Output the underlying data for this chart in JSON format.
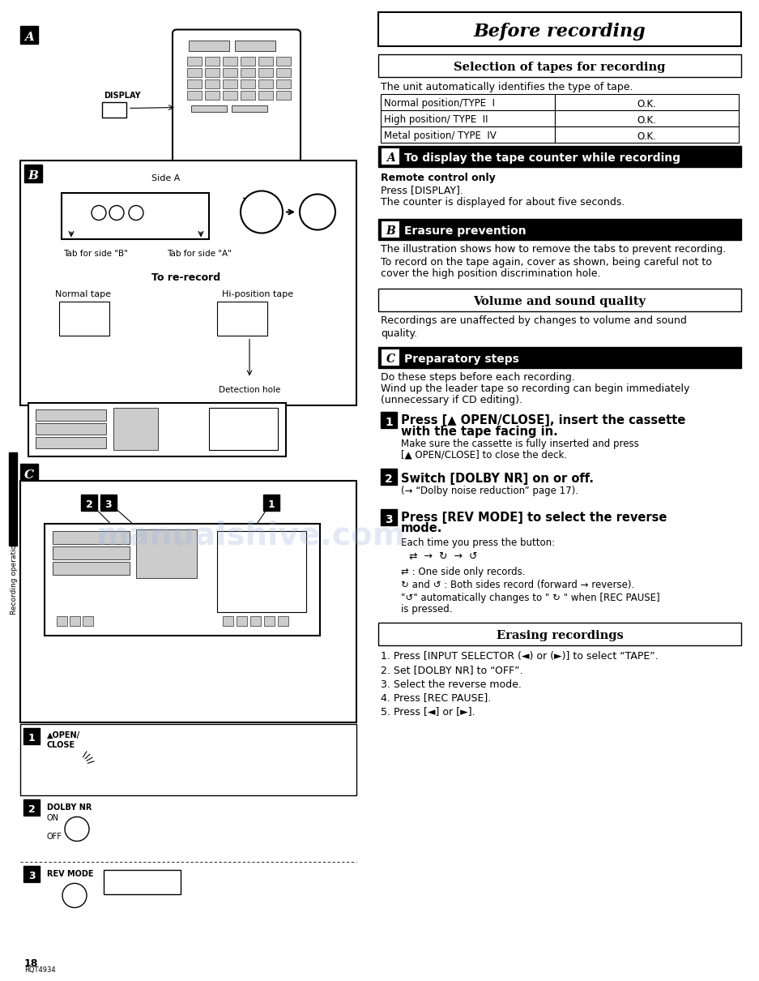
{
  "page_bg": "#ffffff",
  "title": "Before recording",
  "section1_header": "Selection of tapes for recording",
  "section1_intro": "The unit automatically identifies the type of tape.",
  "table_rows": [
    [
      "Normal position/TYPE  I",
      "O.K."
    ],
    [
      "High position/ TYPE  II",
      "O.K."
    ],
    [
      "Metal position/ TYPE  IV",
      "O.K."
    ]
  ],
  "sectionA_header": "To display the tape counter while recording",
  "sectionA_bold": "Remote control only",
  "sectionA_text1": "Press [DISPLAY].",
  "sectionA_text2": "The counter is displayed for about five seconds.",
  "sectionB_header": "Erasure prevention",
  "sectionB_lines": [
    "The illustration shows how to remove the tabs to prevent recording.",
    "To record on the tape again, cover as shown, being careful not to",
    "cover the high position discrimination hole."
  ],
  "section2_header": "Volume and sound quality",
  "section2_lines": [
    "Recordings are unaffected by changes to volume and sound",
    "quality."
  ],
  "sectionC_header": "Preparatory steps",
  "sectionC_intro1": "Do these steps before each recording.",
  "sectionC_intro2": "Wind up the leader tape so recording can begin immediately",
  "sectionC_intro3": "(unnecessary if CD editing).",
  "step1_bold1": "Press [▲ OPEN/CLOSE], insert the cassette",
  "step1_bold2": "with the tape facing in.",
  "step1_sub1": "Make sure the cassette is fully inserted and press",
  "step1_sub2": "[▲ OPEN/CLOSE] to close the deck.",
  "step2_bold": "Switch [DOLBY NR] on or off.",
  "step2_sub": "(→ “Dolby noise reduction” page 17).",
  "step3_bold1": "Press [REV MODE] to select the reverse",
  "step3_bold2": "mode.",
  "step3_sub1": "Each time you press the button:",
  "step3_arrows": "⇄  →  ↻  →  ↺",
  "step3_note1": "⇄ : One side only records.",
  "step3_note2": "↻ and ↺ : Both sides record (forward → reverse).",
  "step3_note3a": "\"↺\" automatically changes to \" ↻ \" when [REC PAUSE]",
  "step3_note3b": "is pressed.",
  "erasing_header": "Erasing recordings",
  "erasing_steps": [
    "1. Press [INPUT SELECTOR (◄) or (►)] to select “TAPE”.",
    "2. Set [DOLBY NR] to “OFF”.",
    "3. Select the reverse mode.",
    "4. Press [REC PAUSE].",
    "5. Press [◄] or [►]."
  ],
  "sidebar_text": "Recording operations",
  "page_number": "18",
  "page_code": "RQT4934",
  "label_A": "A",
  "label_B": "B",
  "label_C": "C"
}
